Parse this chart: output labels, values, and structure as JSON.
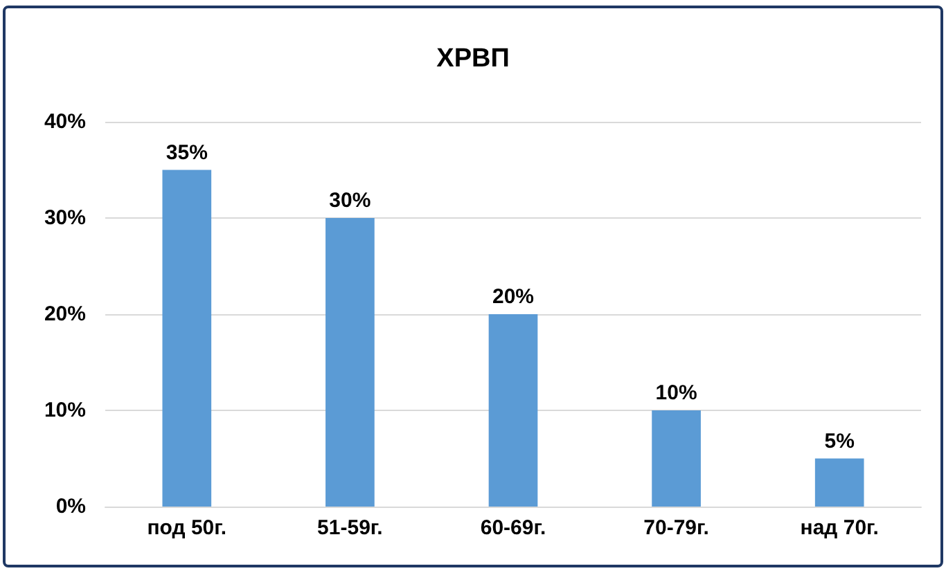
{
  "chart_data": {
    "type": "bar",
    "title": "ХРВП",
    "categories": [
      "под 50г.",
      "51-59г.",
      "60-69г.",
      "70-79г.",
      "над 70г."
    ],
    "values": [
      35,
      30,
      20,
      10,
      5
    ],
    "value_labels": [
      "35%",
      "30%",
      "20%",
      "10%",
      "5%"
    ],
    "color": "#5b9bd5",
    "ylim": [
      0,
      40
    ],
    "yticks": [
      {
        "value": 0,
        "label": "0%"
      },
      {
        "value": 10,
        "label": "10%"
      },
      {
        "value": 20,
        "label": "20%"
      },
      {
        "value": 30,
        "label": "30%"
      },
      {
        "value": 40,
        "label": "40%"
      }
    ],
    "grid": "y"
  }
}
